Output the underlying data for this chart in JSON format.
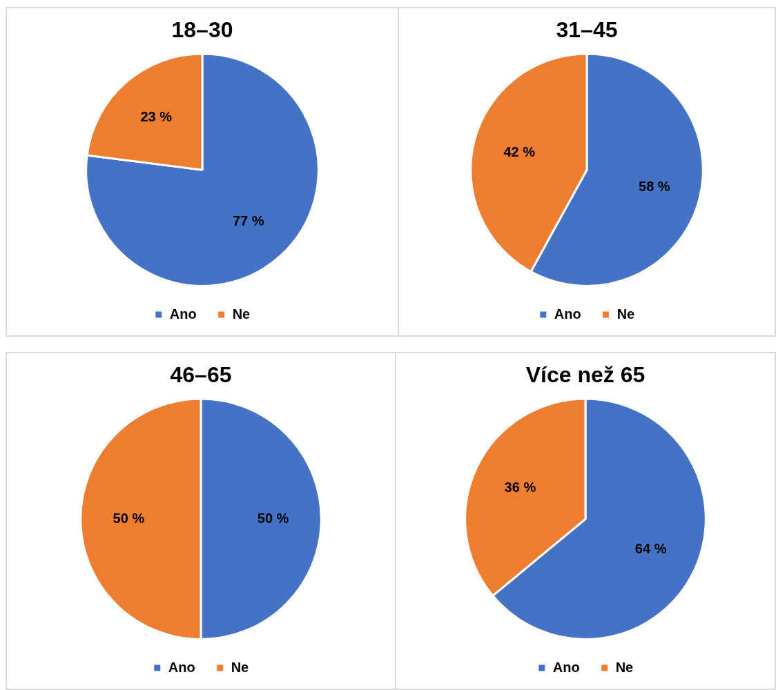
{
  "chart_data": [
    {
      "type": "pie",
      "title": "18–30",
      "categories": [
        "Ano",
        "Ne"
      ],
      "values": [
        77,
        23
      ],
      "colors": [
        "#4472c4",
        "#ed7d31"
      ],
      "value_labels": [
        "77 %",
        "23 %"
      ],
      "legend": "bottom"
    },
    {
      "type": "pie",
      "title": "31–45",
      "categories": [
        "Ano",
        "Ne"
      ],
      "values": [
        58,
        42
      ],
      "colors": [
        "#4472c4",
        "#ed7d31"
      ],
      "value_labels": [
        "58 %",
        "42 %"
      ],
      "legend": "bottom"
    },
    {
      "type": "pie",
      "title": "46–65",
      "categories": [
        "Ano",
        "Ne"
      ],
      "values": [
        50,
        50
      ],
      "colors": [
        "#4472c4",
        "#ed7d31"
      ],
      "value_labels": [
        "50 %",
        "50 %"
      ],
      "legend": "bottom"
    },
    {
      "type": "pie",
      "title": "Více než 65",
      "categories": [
        "Ano",
        "Ne"
      ],
      "values": [
        64,
        36
      ],
      "colors": [
        "#4472c4",
        "#ed7d31"
      ],
      "value_labels": [
        "64 %",
        "36 %"
      ],
      "legend": "bottom"
    }
  ]
}
